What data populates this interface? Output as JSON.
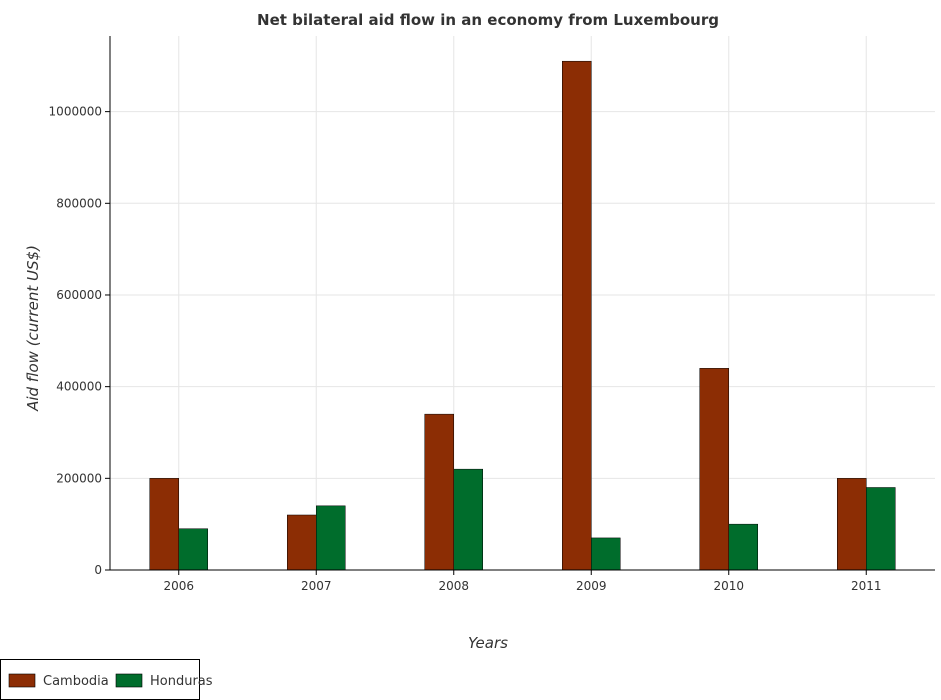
{
  "chart_data": {
    "type": "bar",
    "title": "Net bilateral aid flow in an economy from Luxembourg",
    "xlabel": "Years",
    "ylabel": "Aid flow (current US$)",
    "categories": [
      "2006",
      "2007",
      "2008",
      "2009",
      "2010",
      "2011"
    ],
    "series": [
      {
        "name": "Cambodia",
        "color": "#8c2d04",
        "values": [
          200000,
          120000,
          340000,
          1110000,
          440000,
          200000
        ]
      },
      {
        "name": "Honduras",
        "color": "#006d2c",
        "values": [
          90000,
          140000,
          220000,
          70000,
          100000,
          180000
        ]
      }
    ],
    "ylim": [
      0,
      1165000
    ],
    "yticks": [
      0,
      200000,
      400000,
      600000,
      800000,
      1000000
    ],
    "ytick_labels": [
      "0",
      "200000",
      "400000",
      "600000",
      "800000",
      "1000000"
    ],
    "grid": true,
    "legend_position": "bottom-left"
  }
}
